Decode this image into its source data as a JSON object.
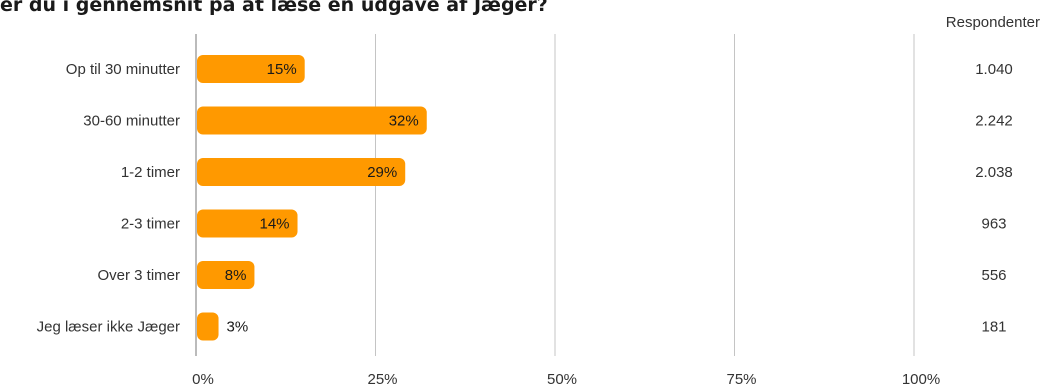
{
  "chart_data": {
    "type": "bar",
    "orientation": "horizontal",
    "title": "er du i gennemsnit på at læse en udgave af Jæger?",
    "categories": [
      "Op til 30 minutter",
      "30-60 minutter",
      "1-2 timer",
      "2-3 timer",
      "Over 3 timer",
      "Jeg læser ikke Jæger"
    ],
    "values": [
      15,
      32,
      29,
      14,
      8,
      3
    ],
    "value_labels": [
      "15%",
      "32%",
      "29%",
      "14%",
      "8%",
      "3%"
    ],
    "xlim": [
      0,
      100
    ],
    "x_ticks": [
      "0%",
      "25%",
      "50%",
      "75%",
      "100%"
    ],
    "grid": "vertical",
    "bar_color": "#ff9900",
    "respondents_header": "Respondenter",
    "respondents": [
      "1.040",
      "2.242",
      "2.038",
      "963",
      "556",
      "181"
    ]
  }
}
